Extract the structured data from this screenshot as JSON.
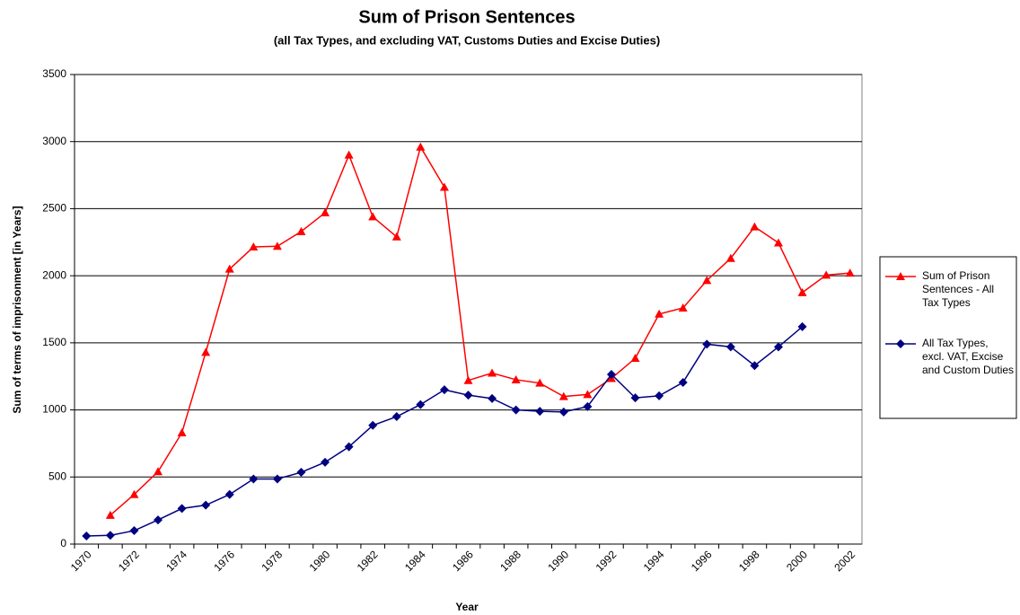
{
  "chart_data": {
    "type": "line",
    "title": "Sum of Prison Sentences",
    "subtitle": "(all Tax Types, and excluding VAT, Customs Duties and Excise Duties)",
    "x_label": "Year",
    "y_label": "Sum of terms of imprisonment [in Years]",
    "categories": [
      "1970",
      null,
      "1972",
      null,
      "1974",
      null,
      "1976",
      null,
      "1978",
      null,
      "1980",
      null,
      "1982",
      null,
      "1984",
      null,
      "1986",
      null,
      "1988",
      null,
      "1990",
      null,
      "1992",
      null,
      "1994",
      null,
      "1996",
      null,
      "1998",
      null,
      "2000",
      null,
      "2002"
    ],
    "series": [
      {
        "name": "Sum of Prison Sentences - All Tax Types",
        "color": "#ff0000",
        "marker": "triangle",
        "values": [
          null,
          215,
          370,
          540,
          830,
          1430,
          2050,
          2215,
          2220,
          2330,
          2470,
          2900,
          2440,
          2290,
          2960,
          2660,
          1220,
          1275,
          1225,
          1200,
          1100,
          1115,
          1235,
          1385,
          1715,
          1760,
          1965,
          2130,
          2365,
          2245,
          1875,
          2005,
          2020
        ]
      },
      {
        "name": "All Tax Types, excl. VAT, Excise and Custom Duties",
        "color": "#000080",
        "marker": "diamond",
        "values": [
          60,
          65,
          100,
          180,
          265,
          290,
          370,
          485,
          485,
          535,
          610,
          725,
          885,
          950,
          1040,
          1150,
          1110,
          1085,
          1000,
          990,
          985,
          1025,
          1265,
          1090,
          1105,
          1205,
          1490,
          1470,
          1330,
          1470,
          1620,
          null,
          null
        ]
      }
    ],
    "ylim": [
      0,
      3500
    ],
    "yticks": [
      0,
      500,
      1000,
      1500,
      2000,
      2500,
      3000,
      3500
    ],
    "grid": true,
    "legend": "right"
  }
}
